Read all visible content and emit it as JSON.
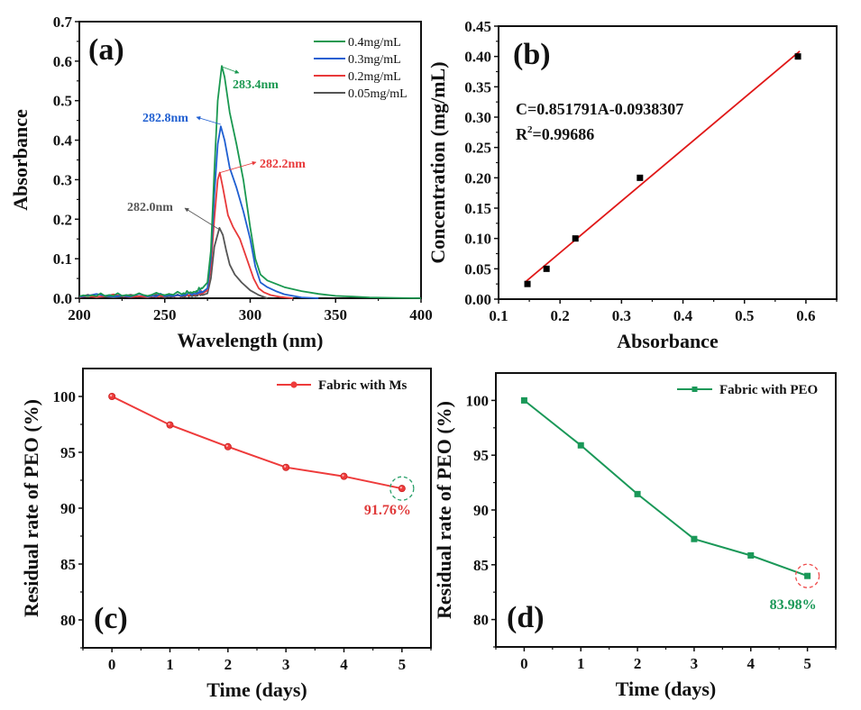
{
  "figure": {
    "panels": [
      "(a)",
      "(b)",
      "(c)",
      "(d)"
    ]
  },
  "chart_data": [
    {
      "id": "a",
      "type": "line",
      "panel_label": "(a)",
      "title": "",
      "xlabel": "Wavelength (nm)",
      "ylabel": "Absorbance",
      "xlim": [
        200,
        400
      ],
      "ylim": [
        0,
        0.7
      ],
      "xticks": [
        200,
        250,
        300,
        350,
        400
      ],
      "yticks": [
        0.0,
        0.1,
        0.2,
        0.3,
        0.4,
        0.5,
        0.6,
        0.7
      ],
      "xtick_labels": [
        "200",
        "250",
        "300",
        "350",
        "400"
      ],
      "ytick_labels": [
        "0.0",
        "0.1",
        "0.2",
        "0.3",
        "0.4",
        "0.5",
        "0.6",
        "0.7"
      ],
      "grid": false,
      "legend_position": "top-right",
      "series": [
        {
          "name": "0.4mg/mL",
          "color": "#1a9850",
          "x": [
            200,
            220,
            240,
            260,
            268,
            272,
            275,
            277,
            279,
            281,
            283.4,
            285,
            288,
            292,
            296,
            300,
            303,
            306,
            310,
            320,
            330,
            340,
            350,
            360,
            370,
            385,
            400
          ],
          "y": [
            0.005,
            0.006,
            0.006,
            0.01,
            0.015,
            0.025,
            0.04,
            0.12,
            0.32,
            0.5,
            0.588,
            0.56,
            0.47,
            0.39,
            0.3,
            0.18,
            0.1,
            0.06,
            0.045,
            0.028,
            0.018,
            0.011,
            0.006,
            0.004,
            0.002,
            0.001,
            0.0
          ]
        },
        {
          "name": "0.3mg/mL",
          "color": "#1f5fd1",
          "x": [
            200,
            240,
            260,
            268,
            272,
            275,
            277,
            279,
            281,
            282.8,
            285,
            288,
            292,
            296,
            300,
            303,
            306,
            310,
            315,
            320,
            330,
            340
          ],
          "y": [
            0.004,
            0.004,
            0.006,
            0.01,
            0.015,
            0.025,
            0.1,
            0.26,
            0.39,
            0.435,
            0.4,
            0.33,
            0.28,
            0.22,
            0.15,
            0.08,
            0.04,
            0.028,
            0.018,
            0.01,
            0.002,
            0.0
          ]
        },
        {
          "name": "0.2mg/mL",
          "color": "#e8393a",
          "x": [
            200,
            240,
            260,
            268,
            272,
            275,
            277,
            279,
            281,
            282.2,
            284,
            287,
            290,
            294,
            298,
            302,
            305,
            308,
            312,
            318,
            325
          ],
          "y": [
            0.003,
            0.003,
            0.005,
            0.008,
            0.012,
            0.02,
            0.08,
            0.2,
            0.3,
            0.318,
            0.28,
            0.21,
            0.18,
            0.15,
            0.1,
            0.05,
            0.025,
            0.015,
            0.008,
            0.003,
            0.0
          ]
        },
        {
          "name": "0.05mg/mL",
          "color": "#555555",
          "x": [
            200,
            240,
            260,
            268,
            272,
            275,
            277,
            279,
            282.0,
            284,
            286,
            288,
            291,
            295,
            300,
            305,
            310
          ],
          "y": [
            0.002,
            0.002,
            0.003,
            0.005,
            0.008,
            0.012,
            0.05,
            0.13,
            0.178,
            0.16,
            0.12,
            0.085,
            0.06,
            0.04,
            0.02,
            0.008,
            0.0
          ]
        }
      ],
      "annotations": [
        {
          "text": "283.4nm",
          "series": "0.4mg/mL",
          "color": "#1a9850"
        },
        {
          "text": "282.8nm",
          "series": "0.3mg/mL",
          "color": "#1f5fd1"
        },
        {
          "text": "282.2nm",
          "series": "0.2mg/mL",
          "color": "#e8393a"
        },
        {
          "text": "282.0nm",
          "series": "0.05mg/mL",
          "color": "#555555"
        }
      ]
    },
    {
      "id": "b",
      "type": "scatter",
      "panel_label": "(b)",
      "title": "",
      "xlabel": "Absorbance",
      "ylabel": "Concentration (mg/mL)",
      "xlim": [
        0.1,
        0.65
      ],
      "ylim": [
        0,
        0.45
      ],
      "xticks": [
        0.1,
        0.2,
        0.3,
        0.4,
        0.5,
        0.6
      ],
      "yticks": [
        0.0,
        0.05,
        0.1,
        0.15,
        0.2,
        0.25,
        0.3,
        0.35,
        0.4,
        0.45
      ],
      "xtick_labels": [
        "0.1",
        "0.2",
        "0.3",
        "0.4",
        "0.5",
        "0.6"
      ],
      "ytick_labels": [
        "0.00",
        "0.05",
        "0.10",
        "0.15",
        "0.20",
        "0.25",
        "0.30",
        "0.35",
        "0.40",
        "0.45"
      ],
      "grid": false,
      "points": {
        "x": [
          0.147,
          0.178,
          0.225,
          0.33,
          0.587
        ],
        "y": [
          0.025,
          0.05,
          0.1,
          0.2,
          0.4
        ],
        "color": "#000000",
        "marker": "square"
      },
      "fit": {
        "slope": 0.851791,
        "intercept": -0.0938307,
        "x_range": [
          0.145,
          0.587
        ],
        "color": "#e01818"
      },
      "equation_text": "C=0.851791A-0.0938307",
      "r2_prefix": "R",
      "r2_sup": "2",
      "r2_value": "=0.99686"
    },
    {
      "id": "c",
      "type": "line",
      "panel_label": "(c)",
      "title": "",
      "xlabel": "Time (days)",
      "ylabel": "Residual rate of PEO (%)",
      "xlim": [
        -0.5,
        5.5
      ],
      "ylim": [
        77.5,
        102.5
      ],
      "xticks": [
        0,
        1,
        2,
        3,
        4,
        5
      ],
      "yticks": [
        80,
        85,
        90,
        95,
        100
      ],
      "xtick_labels": [
        "0",
        "1",
        "2",
        "3",
        "4",
        "5"
      ],
      "ytick_labels": [
        "80",
        "85",
        "90",
        "95",
        "100"
      ],
      "grid": false,
      "legend_position": "top-right",
      "series": [
        {
          "name": "Fabric with Ms",
          "color": "#ee3b3b",
          "marker": "circle",
          "x": [
            0,
            1,
            2,
            3,
            4,
            5
          ],
          "y": [
            100,
            97.45,
            95.5,
            93.65,
            92.85,
            91.76
          ]
        }
      ],
      "highlight": {
        "x": 5,
        "y": 91.76,
        "label": "91.76%",
        "label_color": "#e03a3a",
        "circle_color": "#2aa06a"
      }
    },
    {
      "id": "d",
      "type": "line",
      "panel_label": "(d)",
      "title": "",
      "xlabel": "Time (days)",
      "ylabel": "Residual rate of PEO (%)",
      "xlim": [
        -0.5,
        5.5
      ],
      "ylim": [
        77.5,
        102.5
      ],
      "xticks": [
        0,
        1,
        2,
        3,
        4,
        5
      ],
      "yticks": [
        80,
        85,
        90,
        95,
        100
      ],
      "xtick_labels": [
        "0",
        "1",
        "2",
        "3",
        "4",
        "5"
      ],
      "ytick_labels": [
        "80",
        "85",
        "90",
        "95",
        "100"
      ],
      "grid": false,
      "legend_position": "top-right",
      "series": [
        {
          "name": "Fabric with PEO",
          "color": "#1a9858",
          "marker": "square",
          "x": [
            0,
            1,
            2,
            3,
            4,
            5
          ],
          "y": [
            100,
            95.9,
            91.45,
            87.35,
            85.85,
            83.98
          ]
        }
      ],
      "highlight": {
        "x": 5,
        "y": 83.98,
        "label": "83.98%",
        "label_color": "#1a9858",
        "circle_color": "#ee4b4b"
      }
    }
  ]
}
